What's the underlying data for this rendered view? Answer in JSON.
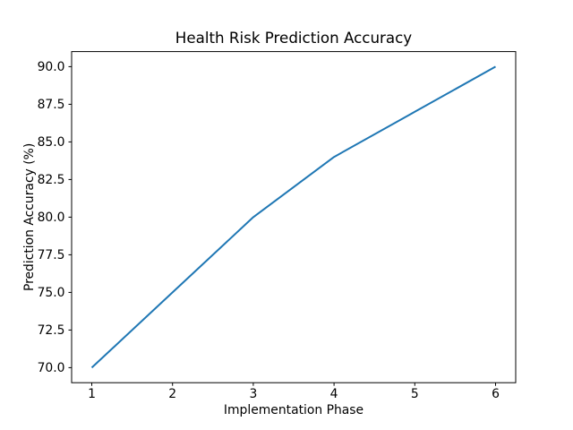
{
  "figure": {
    "background": "#ffffff"
  },
  "chart_data": {
    "type": "line",
    "title": "Health Risk Prediction Accuracy",
    "xlabel": "Implementation Phase",
    "ylabel": "Prediction Accuracy (%)",
    "x": [
      1,
      2,
      3,
      4,
      5,
      6
    ],
    "y": [
      70,
      75,
      80,
      84,
      87,
      90
    ],
    "xlim": [
      0.75,
      6.25
    ],
    "ylim": [
      69,
      91
    ],
    "xtick_values": [
      1,
      2,
      3,
      4,
      5,
      6
    ],
    "xtick_labels": [
      "1",
      "2",
      "3",
      "4",
      "5",
      "6"
    ],
    "ytick_values": [
      70,
      72.5,
      75,
      77.5,
      80,
      82.5,
      85,
      87.5,
      90
    ],
    "ytick_labels": [
      "70.0",
      "72.5",
      "75.0",
      "77.5",
      "80.0",
      "82.5",
      "85.0",
      "87.5",
      "90.0"
    ],
    "line_color": "#1f77b4",
    "axis_color": "#000000",
    "text_color": "#000000",
    "grid": false,
    "legend": false,
    "markers": false
  }
}
